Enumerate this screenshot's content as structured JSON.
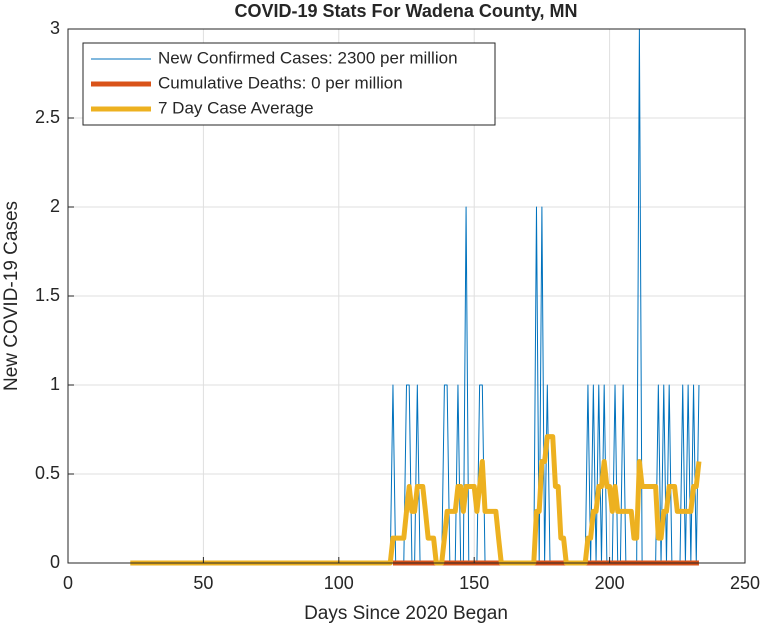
{
  "chart_data": {
    "type": "line",
    "title": "COVID-19 Stats For Wadena County, MN",
    "x_label": "Days Since 2020 Began",
    "y_label": "New COVID-19 Cases",
    "xlim": [
      0,
      250
    ],
    "xticks": [
      0,
      50,
      100,
      150,
      200,
      250
    ],
    "ylim": [
      0,
      3
    ],
    "yticks": [
      0,
      0.5,
      1,
      1.5,
      2,
      2.5,
      3
    ],
    "grid": true,
    "legend": "upper left",
    "x": [
      23,
      24,
      25,
      26,
      27,
      28,
      29,
      30,
      31,
      32,
      33,
      34,
      35,
      36,
      37,
      38,
      39,
      40,
      41,
      42,
      43,
      44,
      45,
      46,
      47,
      48,
      49,
      50,
      51,
      52,
      53,
      54,
      55,
      56,
      57,
      58,
      59,
      60,
      61,
      62,
      63,
      64,
      65,
      66,
      67,
      68,
      69,
      70,
      71,
      72,
      73,
      74,
      75,
      76,
      77,
      78,
      79,
      80,
      81,
      82,
      83,
      84,
      85,
      86,
      87,
      88,
      89,
      90,
      91,
      92,
      93,
      94,
      95,
      96,
      97,
      98,
      99,
      100,
      101,
      102,
      103,
      104,
      105,
      106,
      107,
      108,
      109,
      110,
      111,
      112,
      113,
      114,
      115,
      116,
      117,
      118,
      119,
      120,
      121,
      122,
      123,
      124,
      125,
      126,
      127,
      128,
      129,
      130,
      131,
      132,
      133,
      134,
      135,
      136,
      137,
      138,
      139,
      140,
      141,
      142,
      143,
      144,
      145,
      146,
      147,
      148,
      149,
      150,
      151,
      152,
      153,
      154,
      155,
      156,
      157,
      158,
      159,
      160,
      161,
      162,
      163,
      164,
      165,
      166,
      167,
      168,
      169,
      170,
      171,
      172,
      173,
      174,
      175,
      176,
      177,
      178,
      179,
      180,
      181,
      182,
      183,
      184,
      185,
      186,
      187,
      188,
      189,
      190,
      191,
      192,
      193,
      194,
      195,
      196,
      197,
      198,
      199,
      200,
      201,
      202,
      203,
      204,
      205,
      206,
      207,
      208,
      209,
      210,
      211,
      212,
      213,
      214,
      215,
      216,
      217,
      218,
      219,
      220,
      221,
      222,
      223,
      224,
      225,
      226,
      227,
      228,
      229,
      230,
      231,
      232,
      233
    ],
    "series": [
      {
        "name": "New Confirmed Cases: 2300 per million",
        "color": "#0072bd",
        "width": 1,
        "values": [
          0,
          0,
          0,
          0,
          0,
          0,
          0,
          0,
          0,
          0,
          0,
          0,
          0,
          0,
          0,
          0,
          0,
          0,
          0,
          0,
          0,
          0,
          0,
          0,
          0,
          0,
          0,
          0,
          0,
          0,
          0,
          0,
          0,
          0,
          0,
          0,
          0,
          0,
          0,
          0,
          0,
          0,
          0,
          0,
          0,
          0,
          0,
          0,
          0,
          0,
          0,
          0,
          0,
          0,
          0,
          0,
          0,
          0,
          0,
          0,
          0,
          0,
          0,
          0,
          0,
          0,
          0,
          0,
          0,
          0,
          0,
          0,
          0,
          0,
          0,
          0,
          0,
          0,
          0,
          0,
          0,
          0,
          0,
          0,
          0,
          0,
          0,
          0,
          0,
          0,
          0,
          0,
          0,
          0,
          0,
          0,
          0,
          1,
          0,
          0,
          0,
          0,
          1,
          1,
          0,
          0,
          1,
          0,
          0,
          0,
          0,
          0,
          0,
          0,
          0,
          0,
          1,
          1,
          0,
          0,
          0,
          1,
          0,
          0,
          2,
          0,
          0,
          0,
          0,
          1,
          1,
          0,
          0,
          0,
          0,
          0,
          0,
          0,
          0,
          0,
          0,
          0,
          0,
          0,
          0,
          0,
          0,
          0,
          0,
          0,
          2,
          0,
          2,
          0,
          1,
          0,
          0,
          0,
          0,
          0,
          0,
          0,
          0,
          0,
          0,
          0,
          0,
          0,
          0,
          1,
          0,
          1,
          0,
          1,
          0,
          1,
          0,
          0,
          0,
          1,
          0,
          0,
          1,
          0,
          0,
          0,
          0,
          0,
          3,
          0,
          0,
          0,
          0,
          0,
          0,
          1,
          0,
          1,
          0,
          1,
          0,
          0,
          0,
          0,
          1,
          0,
          1,
          0,
          1,
          0,
          1
        ]
      },
      {
        "name": "Cumulative Deaths: 0 per million",
        "color": "#d95319",
        "width": 5,
        "values": [
          null,
          null,
          null,
          null,
          null,
          null,
          null,
          null,
          null,
          null,
          null,
          null,
          null,
          null,
          null,
          null,
          null,
          null,
          null,
          null,
          null,
          null,
          null,
          null,
          null,
          null,
          null,
          null,
          null,
          null,
          null,
          null,
          null,
          null,
          null,
          null,
          null,
          null,
          null,
          null,
          null,
          null,
          null,
          null,
          null,
          null,
          null,
          null,
          null,
          null,
          null,
          null,
          null,
          null,
          null,
          null,
          null,
          null,
          null,
          null,
          null,
          null,
          null,
          null,
          null,
          null,
          null,
          null,
          null,
          null,
          null,
          null,
          null,
          null,
          null,
          null,
          null,
          null,
          null,
          null,
          null,
          null,
          null,
          null,
          null,
          null,
          null,
          null,
          null,
          null,
          null,
          null,
          null,
          null,
          null,
          null,
          null,
          0,
          0,
          0,
          0,
          0,
          0,
          0,
          0,
          0,
          0,
          0,
          0,
          0,
          0,
          0,
          0,
          0,
          0,
          0,
          0,
          0,
          0,
          0,
          0,
          0,
          0,
          0,
          0,
          0,
          0,
          0,
          0,
          0,
          0,
          0,
          0,
          0,
          0,
          0,
          0,
          0,
          0,
          0,
          0,
          0,
          0,
          0,
          0,
          0,
          0,
          0,
          0,
          0,
          0,
          0,
          0,
          0,
          0,
          0,
          0,
          0,
          0,
          0,
          0,
          0,
          0,
          0,
          0,
          0,
          0,
          0,
          0,
          0,
          0,
          0,
          0,
          0,
          0,
          0,
          0,
          0,
          0,
          0,
          0,
          0,
          0,
          0,
          0,
          0,
          0,
          0,
          0,
          0,
          0,
          0,
          0,
          0,
          0,
          0,
          0,
          0,
          0,
          0,
          0,
          0,
          0,
          0,
          0,
          0,
          0,
          0,
          0,
          0,
          0
        ]
      },
      {
        "name": "7 Day Case Average",
        "color": "#edb120",
        "width": 5,
        "values": [
          0,
          0,
          0,
          0,
          0,
          0,
          0,
          0,
          0,
          0,
          0,
          0,
          0,
          0,
          0,
          0,
          0,
          0,
          0,
          0,
          0,
          0,
          0,
          0,
          0,
          0,
          0,
          0,
          0,
          0,
          0,
          0,
          0,
          0,
          0,
          0,
          0,
          0,
          0,
          0,
          0,
          0,
          0,
          0,
          0,
          0,
          0,
          0,
          0,
          0,
          0,
          0,
          0,
          0,
          0,
          0,
          0,
          0,
          0,
          0,
          0,
          0,
          0,
          0,
          0,
          0,
          0,
          0,
          0,
          0,
          0,
          0,
          0,
          0,
          0,
          0,
          0,
          0,
          0,
          0,
          0,
          0,
          0,
          0,
          0,
          0,
          0,
          0,
          0,
          0,
          0,
          0,
          0,
          0,
          0,
          0,
          0,
          0.14,
          0.14,
          0.14,
          0.14,
          0.14,
          0.29,
          0.43,
          0.29,
          0.29,
          0.43,
          0.43,
          0.43,
          0.29,
          0.14,
          0.14,
          0.14,
          0,
          0,
          0,
          0.14,
          0.29,
          0.29,
          0.29,
          0.29,
          0.43,
          0.43,
          0.29,
          0.43,
          0.43,
          0.43,
          0.43,
          0.29,
          0.43,
          0.57,
          0.29,
          0.29,
          0.29,
          0.29,
          0.29,
          0.14,
          0,
          0,
          0,
          0,
          0,
          0,
          0,
          0,
          0,
          0,
          0,
          0,
          0,
          0.29,
          0.29,
          0.57,
          0.57,
          0.71,
          0.71,
          0.71,
          0.43,
          0.43,
          0.14,
          0.14,
          0,
          0,
          0,
          0,
          0,
          0,
          0,
          0,
          0.14,
          0.14,
          0.29,
          0.29,
          0.43,
          0.43,
          0.57,
          0.43,
          0.43,
          0.29,
          0.43,
          0.29,
          0.29,
          0.29,
          0.29,
          0.29,
          0.29,
          0.14,
          0.14,
          0.57,
          0.43,
          0.43,
          0.43,
          0.43,
          0.43,
          0.43,
          0.14,
          0.14,
          0.29,
          0.29,
          0.43,
          0.43,
          0.43,
          0.29,
          0.29,
          0.29,
          0.29,
          0.29,
          0.29,
          0.43,
          0.43,
          0.57
        ]
      }
    ]
  }
}
